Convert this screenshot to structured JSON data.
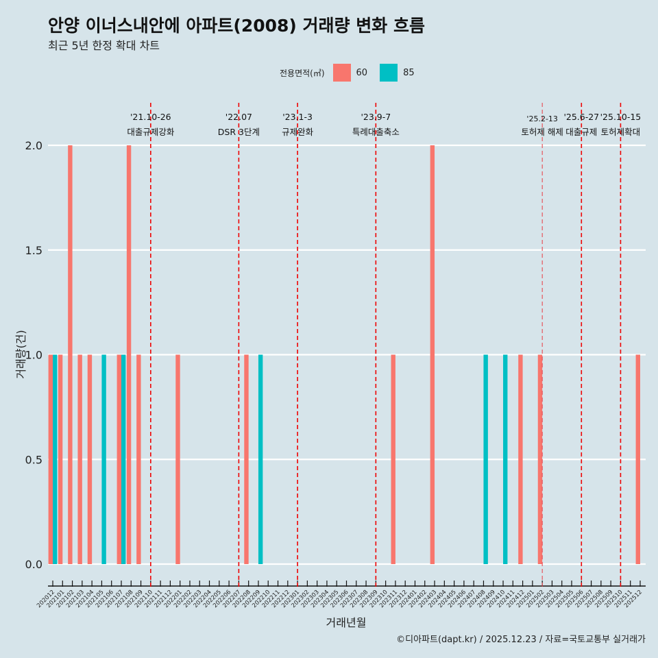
{
  "title": "안양 이너스내안에 아파트(2008) 거래량 변화 흐름",
  "subtitle": "최근 5년 한정 확대 차트",
  "caption": "©디아파트(dapt.kr) / 2025.12.23 / 자료=국토교통부 실거래가",
  "legend": {
    "title": "전용면적(㎡)",
    "items": [
      {
        "label": "60",
        "color": "#f8766d"
      },
      {
        "label": "85",
        "color": "#00bfc4"
      }
    ]
  },
  "chart_data": {
    "type": "bar",
    "title": "안양 이너스내안에 아파트(2008) 거래량 변화 흐름",
    "xlabel": "거래년월",
    "ylabel": "거래량(건)",
    "ylim": [
      0,
      2
    ],
    "yticks": [
      "0.0",
      "0.5",
      "1.0",
      "1.5",
      "2.0"
    ],
    "ytick_values": [
      0,
      0.5,
      1,
      1.5,
      2
    ],
    "categories": [
      "202012",
      "202101",
      "202102",
      "202103",
      "202104",
      "202105",
      "202106",
      "202107",
      "202108",
      "202109",
      "202110",
      "202111",
      "202112",
      "202201",
      "202202",
      "202203",
      "202204",
      "202205",
      "202206",
      "202207",
      "202208",
      "202209",
      "202210",
      "202211",
      "202212",
      "202301",
      "202302",
      "202303",
      "202304",
      "202305",
      "202306",
      "202307",
      "202308",
      "202309",
      "202310",
      "202311",
      "202312",
      "202401",
      "202402",
      "202403",
      "202404",
      "202405",
      "202406",
      "202407",
      "202408",
      "202409",
      "202410",
      "202411",
      "202412",
      "202501",
      "202502",
      "202503",
      "202504",
      "202505",
      "202506",
      "202507",
      "202508",
      "202509",
      "202510",
      "202511",
      "202512"
    ],
    "series": [
      {
        "name": "60",
        "color": "#f8766d",
        "points": [
          [
            "202012",
            1
          ],
          [
            "202101",
            1
          ],
          [
            "202102",
            2
          ],
          [
            "202103",
            1
          ],
          [
            "202104",
            1
          ],
          [
            "202107",
            1
          ],
          [
            "202108",
            2
          ],
          [
            "202109",
            1
          ],
          [
            "202201",
            1
          ],
          [
            "202208",
            1
          ],
          [
            "202311",
            1
          ],
          [
            "202403",
            2
          ],
          [
            "202412",
            1
          ],
          [
            "202502",
            1
          ],
          [
            "202512",
            1
          ]
        ]
      },
      {
        "name": "85",
        "color": "#00bfc4",
        "points": [
          [
            "202012",
            1
          ],
          [
            "202105",
            1
          ],
          [
            "202107",
            1
          ],
          [
            "202209",
            1
          ],
          [
            "202408",
            1
          ],
          [
            "202410",
            1
          ]
        ]
      }
    ],
    "events": [
      {
        "month": "202110",
        "date": "'21.10-26",
        "label": "대출규제강화"
      },
      {
        "month": "202207",
        "date": "'22.07",
        "label": "DSR 3단계"
      },
      {
        "month": "202301",
        "date": "'23.1-3",
        "label": "규제완화"
      },
      {
        "month": "202309",
        "date": "'23.9-7",
        "label": "특례대출축소"
      },
      {
        "month": "202502",
        "date": "'25.2-13",
        "label": "토허제 해제",
        "minor": true
      },
      {
        "month": "202506",
        "date": "'25.6-27",
        "label": "대출규제"
      },
      {
        "month": "202510",
        "date": "'25.10-15",
        "label": "토허제확대"
      }
    ],
    "grid": true,
    "legend_position": "top"
  }
}
